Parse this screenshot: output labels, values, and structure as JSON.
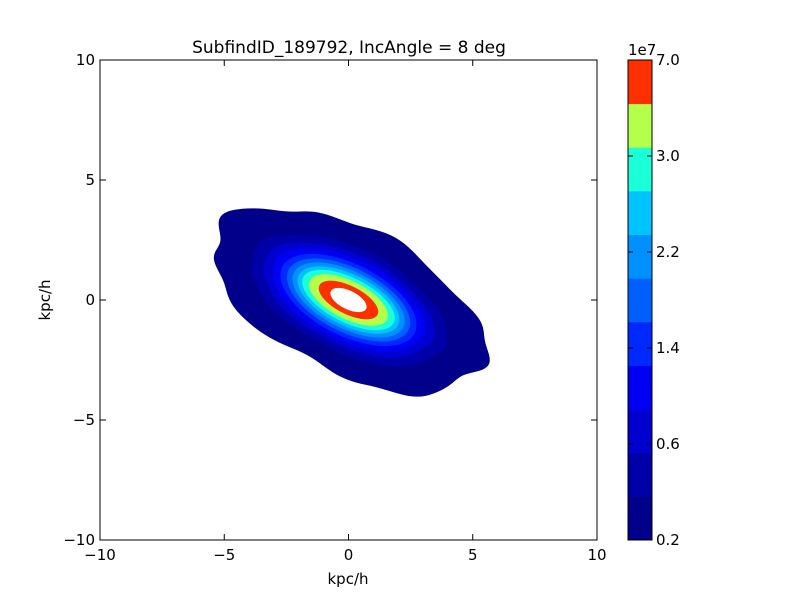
{
  "chart_data": {
    "type": "contour",
    "title": "SubfindID_189792, IncAngle = 8 deg",
    "xlabel": "kpc/h",
    "ylabel": "kpc/h",
    "xlim": [
      -10,
      10
    ],
    "ylim": [
      -10,
      10
    ],
    "x_ticks": [
      -10,
      -5,
      0,
      5,
      10
    ],
    "y_ticks": [
      -10,
      -5,
      0,
      5,
      10
    ],
    "x_tick_labels": [
      "−10",
      "−5",
      "0",
      "5",
      "10"
    ],
    "y_tick_labels": [
      "−10",
      "−5",
      "0",
      "5",
      "10"
    ],
    "grid": false,
    "center": [
      0,
      0
    ],
    "orientation_deg": -28,
    "contour_levels": [
      {
        "semi_major": 6.0,
        "semi_minor": 3.0,
        "color": "#00008a"
      },
      {
        "semi_major": 4.3,
        "semi_minor": 2.15,
        "color": "#0000a8"
      },
      {
        "semi_major": 3.75,
        "semi_minor": 1.87,
        "color": "#0000d0"
      },
      {
        "semi_major": 3.35,
        "semi_minor": 1.67,
        "color": "#0000f5"
      },
      {
        "semi_major": 3.0,
        "semi_minor": 1.48,
        "color": "#0028ff"
      },
      {
        "semi_major": 2.72,
        "semi_minor": 1.32,
        "color": "#0060ff"
      },
      {
        "semi_major": 2.48,
        "semi_minor": 1.18,
        "color": "#0090ff"
      },
      {
        "semi_major": 2.25,
        "semi_minor": 1.05,
        "color": "#00c4ff"
      },
      {
        "semi_major": 2.05,
        "semi_minor": 0.92,
        "color": "#1affd8"
      },
      {
        "semi_major": 1.75,
        "semi_minor": 0.78,
        "color": "#b4ff4a"
      },
      {
        "semi_major": 1.32,
        "semi_minor": 0.58,
        "color": "#ff3000"
      },
      {
        "semi_major": 0.8,
        "semi_minor": 0.38,
        "color": "#ffffff"
      }
    ],
    "colorbar": {
      "multiplier": "1e7",
      "bands": [
        "#00008a",
        "#0000a8",
        "#0000d0",
        "#0000f5",
        "#0028ff",
        "#0060ff",
        "#0090ff",
        "#00c4ff",
        "#1affd8",
        "#b4ff4a",
        "#ff3000"
      ],
      "tick_labels": [
        "0.2",
        "0.6",
        "1.4",
        "2.2",
        "3.0",
        "7.0"
      ]
    }
  }
}
